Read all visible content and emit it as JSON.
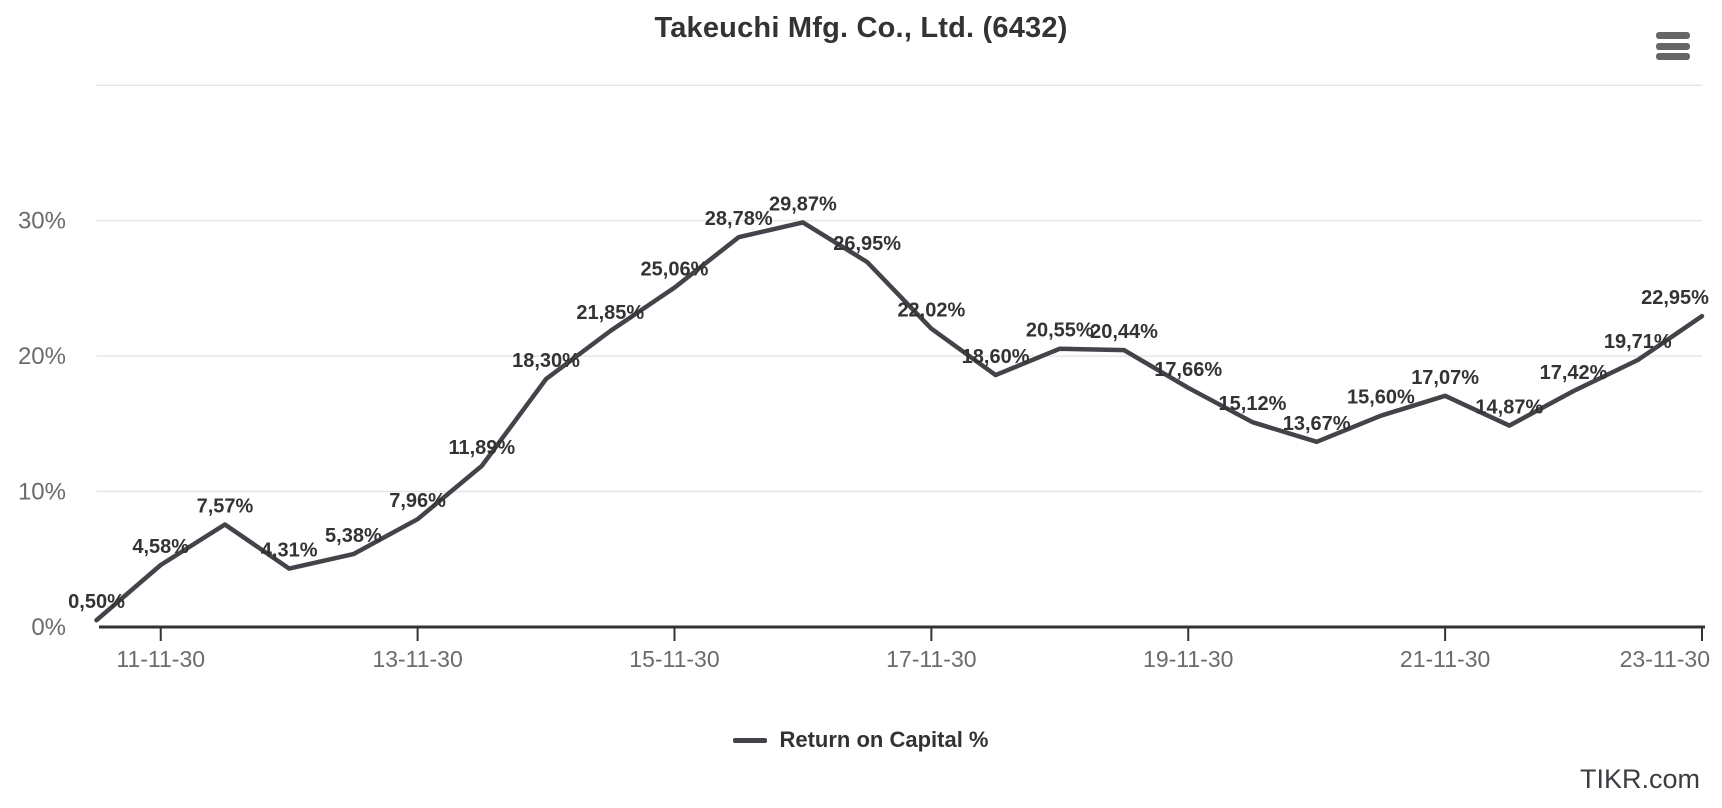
{
  "header": {
    "title": "Takeuchi Mfg. Co., Ltd. (6432)"
  },
  "chart_data": {
    "type": "line",
    "title": "Takeuchi Mfg. Co., Ltd. (6432)",
    "x_tick_labels": [
      "11-11-30",
      "13-11-30",
      "15-11-30",
      "17-11-30",
      "19-11-30",
      "21-11-30",
      "23-11-30"
    ],
    "x_tick_point_indices": [
      1,
      5,
      9,
      13,
      17,
      21,
      25
    ],
    "series": [
      {
        "name": "Return on Capital %",
        "color": "#43434a",
        "values": [
          0.5,
          4.58,
          7.57,
          4.31,
          5.38,
          7.96,
          11.89,
          18.3,
          21.85,
          25.06,
          28.78,
          29.87,
          26.95,
          22.02,
          18.6,
          20.55,
          20.44,
          17.66,
          15.12,
          13.67,
          15.6,
          17.07,
          14.87,
          17.42,
          19.71,
          22.95
        ],
        "point_labels": [
          "0,50%",
          "4,58%",
          "7,57%",
          "4,31%",
          "5,38%",
          "7,96%",
          "11,89%",
          "18,30%",
          "21,85%",
          "25,06%",
          "28,78%",
          "29,87%",
          "26,95%",
          "22,02%",
          "18,60%",
          "20,55%",
          "20,44%",
          "17,66%",
          "15,12%",
          "13,67%",
          "15,60%",
          "17,07%",
          "14,87%",
          "17,42%",
          "19,71%",
          "22,95%"
        ]
      }
    ],
    "y_axis": {
      "tick_labels": [
        "0%",
        "10%",
        "20%",
        "30%"
      ],
      "tick_values": [
        0,
        10,
        20,
        30
      ],
      "gridline_values": [
        10,
        20,
        30,
        40
      ],
      "range": [
        0,
        40
      ]
    },
    "grid": "horizontal-only",
    "legend_position": "bottom-center"
  },
  "legend": {
    "items": [
      {
        "label": "Return on Capital %",
        "color": "#43434a"
      }
    ]
  },
  "watermark": "TIKR.com",
  "colors": {
    "line": "#43434a",
    "data_label": "#333333",
    "axis_line": "#333333",
    "gridline": "#e6e6e6",
    "axis_text": "#6b6b6b",
    "title_text": "#333333",
    "menu_icon": "#666666"
  }
}
